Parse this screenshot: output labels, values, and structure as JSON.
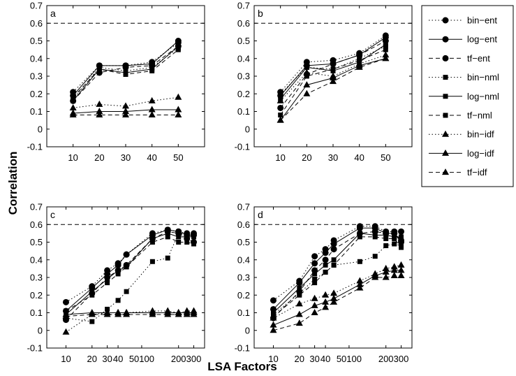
{
  "figure": {
    "ylabel": "Correlation",
    "xlabel": "LSA Factors"
  },
  "legend": {
    "placement": "right",
    "entries": [
      {
        "label": "bin−ent",
        "line": "dotted",
        "marker": "circle"
      },
      {
        "label": "log−ent",
        "line": "solid",
        "marker": "circle"
      },
      {
        "label": "tf−ent",
        "line": "dashed",
        "marker": "circle"
      },
      {
        "label": "bin−nml",
        "line": "dotted",
        "marker": "square"
      },
      {
        "label": "log−nml",
        "line": "solid",
        "marker": "square"
      },
      {
        "label": "tf−nml",
        "line": "dashed",
        "marker": "square"
      },
      {
        "label": "bin−idf",
        "line": "dotted",
        "marker": "triangle"
      },
      {
        "label": "log−idf",
        "line": "solid",
        "marker": "triangle"
      },
      {
        "label": "tf−idf",
        "line": "dashed",
        "marker": "triangle"
      }
    ]
  },
  "chart_data": [
    {
      "panel": "a",
      "type": "line",
      "x": [
        10,
        20,
        30,
        40,
        50
      ],
      "xticks": [
        "10",
        "20",
        "30",
        "40",
        "50"
      ],
      "ylim": [
        -0.1,
        0.7
      ],
      "yticks": [
        "-0.1",
        "0",
        "0.1",
        "0.2",
        "0.3",
        "0.4",
        "0.5",
        "0.6",
        "0.7"
      ],
      "reference_line": 0.6,
      "series": [
        {
          "name": "bin−ent",
          "values": [
            0.21,
            0.36,
            0.36,
            0.38,
            0.49
          ]
        },
        {
          "name": "log−ent",
          "values": [
            0.19,
            0.36,
            0.36,
            0.37,
            0.5
          ]
        },
        {
          "name": "tf−ent",
          "values": [
            0.16,
            0.32,
            0.35,
            0.36,
            0.47
          ]
        },
        {
          "name": "bin−nml",
          "values": [
            0.17,
            0.35,
            0.33,
            0.35,
            0.46
          ]
        },
        {
          "name": "log−nml",
          "values": [
            0.16,
            0.34,
            0.32,
            0.34,
            0.47
          ]
        },
        {
          "name": "tf−nml",
          "values": [
            0.18,
            0.34,
            0.31,
            0.33,
            0.45
          ]
        },
        {
          "name": "bin−idf",
          "values": [
            0.12,
            0.14,
            0.13,
            0.16,
            0.18
          ]
        },
        {
          "name": "log−idf",
          "values": [
            0.09,
            0.1,
            0.1,
            0.11,
            0.11
          ]
        },
        {
          "name": "tf−idf",
          "values": [
            0.08,
            0.08,
            0.08,
            0.08,
            0.08
          ]
        }
      ]
    },
    {
      "panel": "b",
      "type": "line",
      "x": [
        10,
        20,
        30,
        40,
        50
      ],
      "xticks": [
        "10",
        "20",
        "30",
        "40",
        "50"
      ],
      "ylim": [
        -0.1,
        0.7
      ],
      "yticks": [
        "-0.1",
        "0",
        "0.1",
        "0.2",
        "0.3",
        "0.4",
        "0.5",
        "0.6",
        "0.7"
      ],
      "reference_line": 0.6,
      "series": [
        {
          "name": "bin−ent",
          "values": [
            0.21,
            0.38,
            0.39,
            0.43,
            0.53
          ]
        },
        {
          "name": "log−ent",
          "values": [
            0.19,
            0.36,
            0.37,
            0.42,
            0.52
          ]
        },
        {
          "name": "tf−ent",
          "values": [
            0.12,
            0.31,
            0.37,
            0.42,
            0.5
          ]
        },
        {
          "name": "bin−nml",
          "values": [
            0.2,
            0.35,
            0.34,
            0.4,
            0.47
          ]
        },
        {
          "name": "log−nml",
          "values": [
            0.17,
            0.35,
            0.33,
            0.38,
            0.48
          ]
        },
        {
          "name": "tf−nml",
          "values": [
            0.08,
            0.3,
            0.34,
            0.39,
            0.45
          ]
        },
        {
          "name": "bin−idf",
          "values": [
            0.16,
            0.32,
            0.3,
            0.37,
            0.42
          ]
        },
        {
          "name": "log−idf",
          "values": [
            0.05,
            0.25,
            0.29,
            0.36,
            0.4
          ]
        },
        {
          "name": "tf−idf",
          "values": [
            0.05,
            0.2,
            0.27,
            0.35,
            0.4
          ]
        }
      ]
    },
    {
      "panel": "c",
      "type": "line",
      "x": [
        10,
        20,
        30,
        40,
        50,
        100,
        150,
        200,
        250,
        300
      ],
      "xticks": [
        "10",
        "20",
        "30",
        "40",
        "50100",
        "200",
        "300"
      ],
      "ylim": [
        -0.1,
        0.7
      ],
      "yticks": [
        "-0.1",
        "0",
        "0.1",
        "0.2",
        "0.3",
        "0.4",
        "0.5",
        "0.6",
        "0.7"
      ],
      "reference_line": 0.6,
      "series": [
        {
          "name": "bin−ent",
          "values": [
            0.16,
            0.25,
            0.34,
            0.38,
            0.43,
            0.55,
            0.57,
            0.56,
            0.55,
            0.55
          ]
        },
        {
          "name": "log−ent",
          "values": [
            0.11,
            0.24,
            0.32,
            0.37,
            0.43,
            0.54,
            0.57,
            0.56,
            0.54,
            0.54
          ]
        },
        {
          "name": "tf−ent",
          "values": [
            0.06,
            0.21,
            0.3,
            0.34,
            0.37,
            0.52,
            0.56,
            0.55,
            0.52,
            0.5
          ]
        },
        {
          "name": "bin−nml",
          "values": [
            0.07,
            0.05,
            0.12,
            0.17,
            0.22,
            0.39,
            0.41,
            0.55,
            0.54,
            0.54
          ]
        },
        {
          "name": "log−nml",
          "values": [
            0.09,
            0.22,
            0.29,
            0.34,
            0.36,
            0.52,
            0.55,
            0.53,
            0.53,
            0.53
          ]
        },
        {
          "name": "tf−nml",
          "values": [
            0.11,
            0.2,
            0.27,
            0.32,
            0.36,
            0.5,
            0.53,
            0.5,
            0.5,
            0.49
          ]
        },
        {
          "name": "bin−idf",
          "values": [
            -0.01,
            0.09,
            0.1,
            0.1,
            0.1,
            0.11,
            0.11,
            0.1,
            0.11,
            0.11
          ]
        },
        {
          "name": "log−idf",
          "values": [
            0.09,
            0.1,
            0.1,
            0.1,
            0.1,
            0.1,
            0.1,
            0.1,
            0.1,
            0.1
          ]
        },
        {
          "name": "tf−idf",
          "values": [
            0.08,
            0.09,
            0.09,
            0.09,
            0.09,
            0.09,
            0.09,
            0.09,
            0.09,
            0.09
          ]
        }
      ]
    },
    {
      "panel": "d",
      "type": "line",
      "x": [
        10,
        20,
        30,
        40,
        50,
        100,
        150,
        200,
        250,
        300
      ],
      "xticks": [
        "10",
        "20",
        "30",
        "40",
        "50100",
        "200",
        "300"
      ],
      "ylim": [
        -0.1,
        0.7
      ],
      "yticks": [
        "-0.1",
        "0",
        "0.1",
        "0.2",
        "0.3",
        "0.4",
        "0.5",
        "0.6",
        "0.7"
      ],
      "reference_line": 0.6,
      "series": [
        {
          "name": "bin−ent",
          "values": [
            0.17,
            0.28,
            0.42,
            0.46,
            0.51,
            0.59,
            0.59,
            0.56,
            0.56,
            0.56
          ]
        },
        {
          "name": "log−ent",
          "values": [
            0.12,
            0.27,
            0.38,
            0.44,
            0.49,
            0.58,
            0.58,
            0.55,
            0.55,
            0.51
          ]
        },
        {
          "name": "tf−ent",
          "values": [
            0.07,
            0.22,
            0.34,
            0.4,
            0.46,
            0.55,
            0.56,
            0.55,
            0.55,
            0.5
          ]
        },
        {
          "name": "bin−nml",
          "values": [
            0.09,
            0.21,
            0.29,
            0.33,
            0.37,
            0.39,
            0.42,
            0.48,
            0.49,
            0.48
          ]
        },
        {
          "name": "log−nml",
          "values": [
            0.1,
            0.24,
            0.32,
            0.37,
            0.4,
            0.55,
            0.54,
            0.54,
            0.53,
            0.53
          ]
        },
        {
          "name": "tf−nml",
          "values": [
            0.08,
            0.2,
            0.27,
            0.33,
            0.37,
            0.53,
            0.53,
            0.52,
            0.52,
            0.47
          ]
        },
        {
          "name": "bin−idf",
          "values": [
            0.07,
            0.15,
            0.18,
            0.2,
            0.21,
            0.28,
            0.32,
            0.35,
            0.36,
            0.37
          ]
        },
        {
          "name": "log−idf",
          "values": [
            0.03,
            0.09,
            0.14,
            0.16,
            0.18,
            0.26,
            0.31,
            0.33,
            0.34,
            0.34
          ]
        },
        {
          "name": "tf−idf",
          "values": [
            0.0,
            0.04,
            0.1,
            0.13,
            0.16,
            0.24,
            0.3,
            0.3,
            0.31,
            0.31
          ]
        }
      ]
    }
  ]
}
